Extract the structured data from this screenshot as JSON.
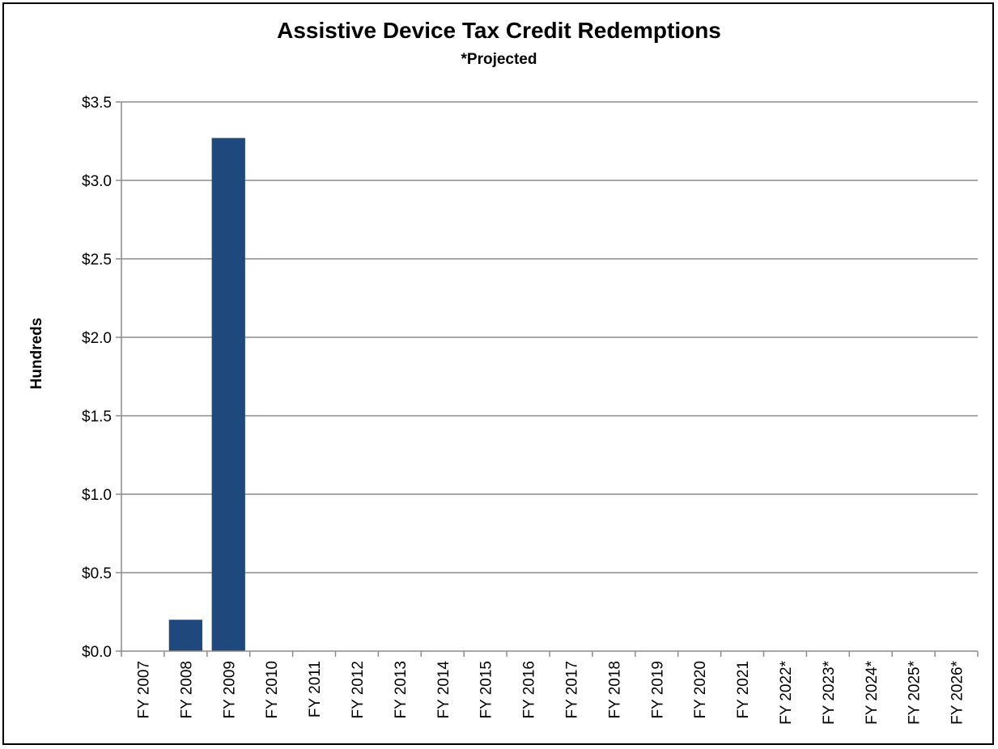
{
  "chart_data": {
    "type": "bar",
    "title": "Assistive Device Tax Credit Redemptions",
    "subtitle": "*Projected",
    "xlabel": "",
    "ylabel": "Hundreds",
    "ylim": [
      0,
      3.5
    ],
    "yticks": [
      0,
      0.5,
      1.0,
      1.5,
      2.0,
      2.5,
      3.0,
      3.5
    ],
    "ytick_labels": [
      "$0.0",
      "$0.5",
      "$1.0",
      "$1.5",
      "$2.0",
      "$2.5",
      "$3.0",
      "$3.5"
    ],
    "categories": [
      "FY 2007",
      "FY 2008",
      "FY 2009",
      "FY 2010",
      "FY 2011",
      "FY 2012",
      "FY 2013",
      "FY 2014",
      "FY 2015",
      "FY 2016",
      "FY 2017",
      "FY 2018",
      "FY 2019",
      "FY 2020",
      "FY 2021",
      "FY 2022*",
      "FY 2023*",
      "FY 2024*",
      "FY 2025*",
      "FY 2026*"
    ],
    "values": [
      0,
      0.2,
      3.27,
      0,
      0,
      0,
      0,
      0,
      0,
      0,
      0,
      0,
      0,
      0,
      0,
      0,
      0,
      0,
      0,
      0
    ],
    "grid": true,
    "legend": "none",
    "colors": {
      "bar": "#1f497d",
      "grid": "#8c8c8c",
      "axis": "#8c8c8c"
    }
  }
}
